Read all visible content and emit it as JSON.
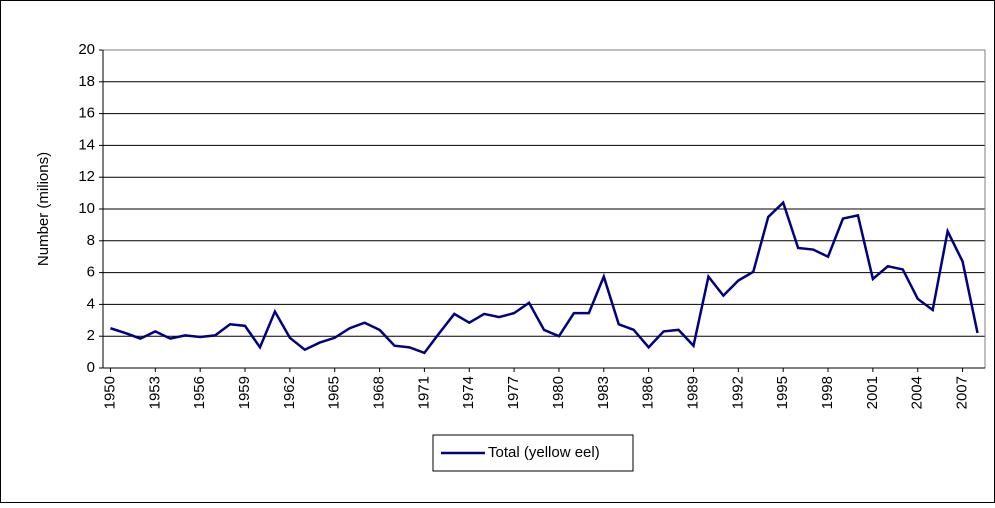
{
  "chart_data": {
    "type": "line",
    "y_label": "Number (milions)",
    "x": [
      1950,
      1951,
      1952,
      1953,
      1954,
      1955,
      1956,
      1957,
      1958,
      1959,
      1960,
      1961,
      1962,
      1963,
      1964,
      1965,
      1966,
      1967,
      1968,
      1969,
      1970,
      1971,
      1972,
      1973,
      1974,
      1975,
      1976,
      1977,
      1978,
      1979,
      1980,
      1981,
      1982,
      1983,
      1984,
      1985,
      1986,
      1987,
      1988,
      1989,
      1990,
      1991,
      1992,
      1993,
      1994,
      1995,
      1996,
      1997,
      1998,
      1999,
      2000,
      2001,
      2002,
      2003,
      2004,
      2005,
      2006,
      2007,
      2008
    ],
    "series": [
      {
        "name": "Total (yellow eel)",
        "color": "#000080",
        "values": [
          2.5,
          2.2,
          1.85,
          2.3,
          1.85,
          2.05,
          1.95,
          2.05,
          2.75,
          2.65,
          1.3,
          3.55,
          1.9,
          1.15,
          1.6,
          1.9,
          2.5,
          2.85,
          2.4,
          1.4,
          1.3,
          0.95,
          2.2,
          3.4,
          2.85,
          3.4,
          3.2,
          3.45,
          4.1,
          2.4,
          2.0,
          3.45,
          3.45,
          5.75,
          2.75,
          2.4,
          1.3,
          2.3,
          2.4,
          1.4,
          5.75,
          4.55,
          5.5,
          6.05,
          9.5,
          10.4,
          7.55,
          7.45,
          7.0,
          9.4,
          9.6,
          5.6,
          6.4,
          6.2,
          4.35,
          3.65,
          8.6,
          6.7,
          2.2
        ]
      }
    ],
    "xlim": [
      1949.5,
      2008.5
    ],
    "xticks": [
      1950,
      1953,
      1956,
      1959,
      1962,
      1965,
      1968,
      1971,
      1974,
      1977,
      1980,
      1983,
      1986,
      1989,
      1992,
      1995,
      1998,
      2001,
      2004,
      2007
    ],
    "ylim": [
      0,
      20
    ],
    "yticks": [
      0,
      2,
      4,
      6,
      8,
      10,
      12,
      14,
      16,
      18,
      20
    ],
    "grid": true,
    "legend": "bottom"
  }
}
